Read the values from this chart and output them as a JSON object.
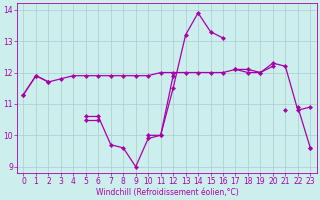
{
  "background_color": "#cceeed",
  "grid_color": "#aacccc",
  "line_color": "#aa00aa",
  "xlabel": "Windchill (Refroidissement éolien,°C)",
  "x": [
    0,
    1,
    2,
    3,
    4,
    5,
    6,
    7,
    8,
    9,
    10,
    11,
    12,
    13,
    14,
    15,
    16,
    17,
    18,
    19,
    20,
    21,
    22,
    23
  ],
  "line1": [
    11.3,
    11.9,
    11.7,
    11.8,
    11.9,
    11.9,
    11.9,
    11.9,
    11.9,
    11.9,
    11.9,
    12.0,
    12.0,
    12.0,
    12.0,
    12.0,
    12.0,
    12.1,
    12.1,
    12.0,
    12.3,
    12.2,
    10.8,
    10.9
  ],
  "line2": [
    11.3,
    11.9,
    11.7,
    null,
    null,
    10.6,
    10.6,
    9.7,
    9.6,
    9.0,
    9.9,
    10.0,
    11.5,
    13.2,
    13.9,
    13.3,
    13.1,
    null,
    null,
    null,
    null,
    10.8,
    null,
    9.6
  ],
  "line3": [
    null,
    null,
    null,
    null,
    null,
    10.5,
    10.5,
    null,
    null,
    null,
    10.0,
    10.0,
    11.9,
    null,
    null,
    null,
    null,
    12.1,
    12.0,
    12.0,
    12.2,
    null,
    10.9,
    9.6
  ],
  "ylim_min": 8.8,
  "ylim_max": 14.2,
  "xlim_min": -0.5,
  "xlim_max": 23.5,
  "yticks": [
    9,
    10,
    11,
    12,
    13,
    14
  ],
  "xticks": [
    0,
    1,
    2,
    3,
    4,
    5,
    6,
    7,
    8,
    9,
    10,
    11,
    12,
    13,
    14,
    15,
    16,
    17,
    18,
    19,
    20,
    21,
    22,
    23
  ],
  "xlabel_fontsize": 5.5,
  "tick_fontsize": 5.5,
  "linewidth": 0.9,
  "markersize": 2.2
}
